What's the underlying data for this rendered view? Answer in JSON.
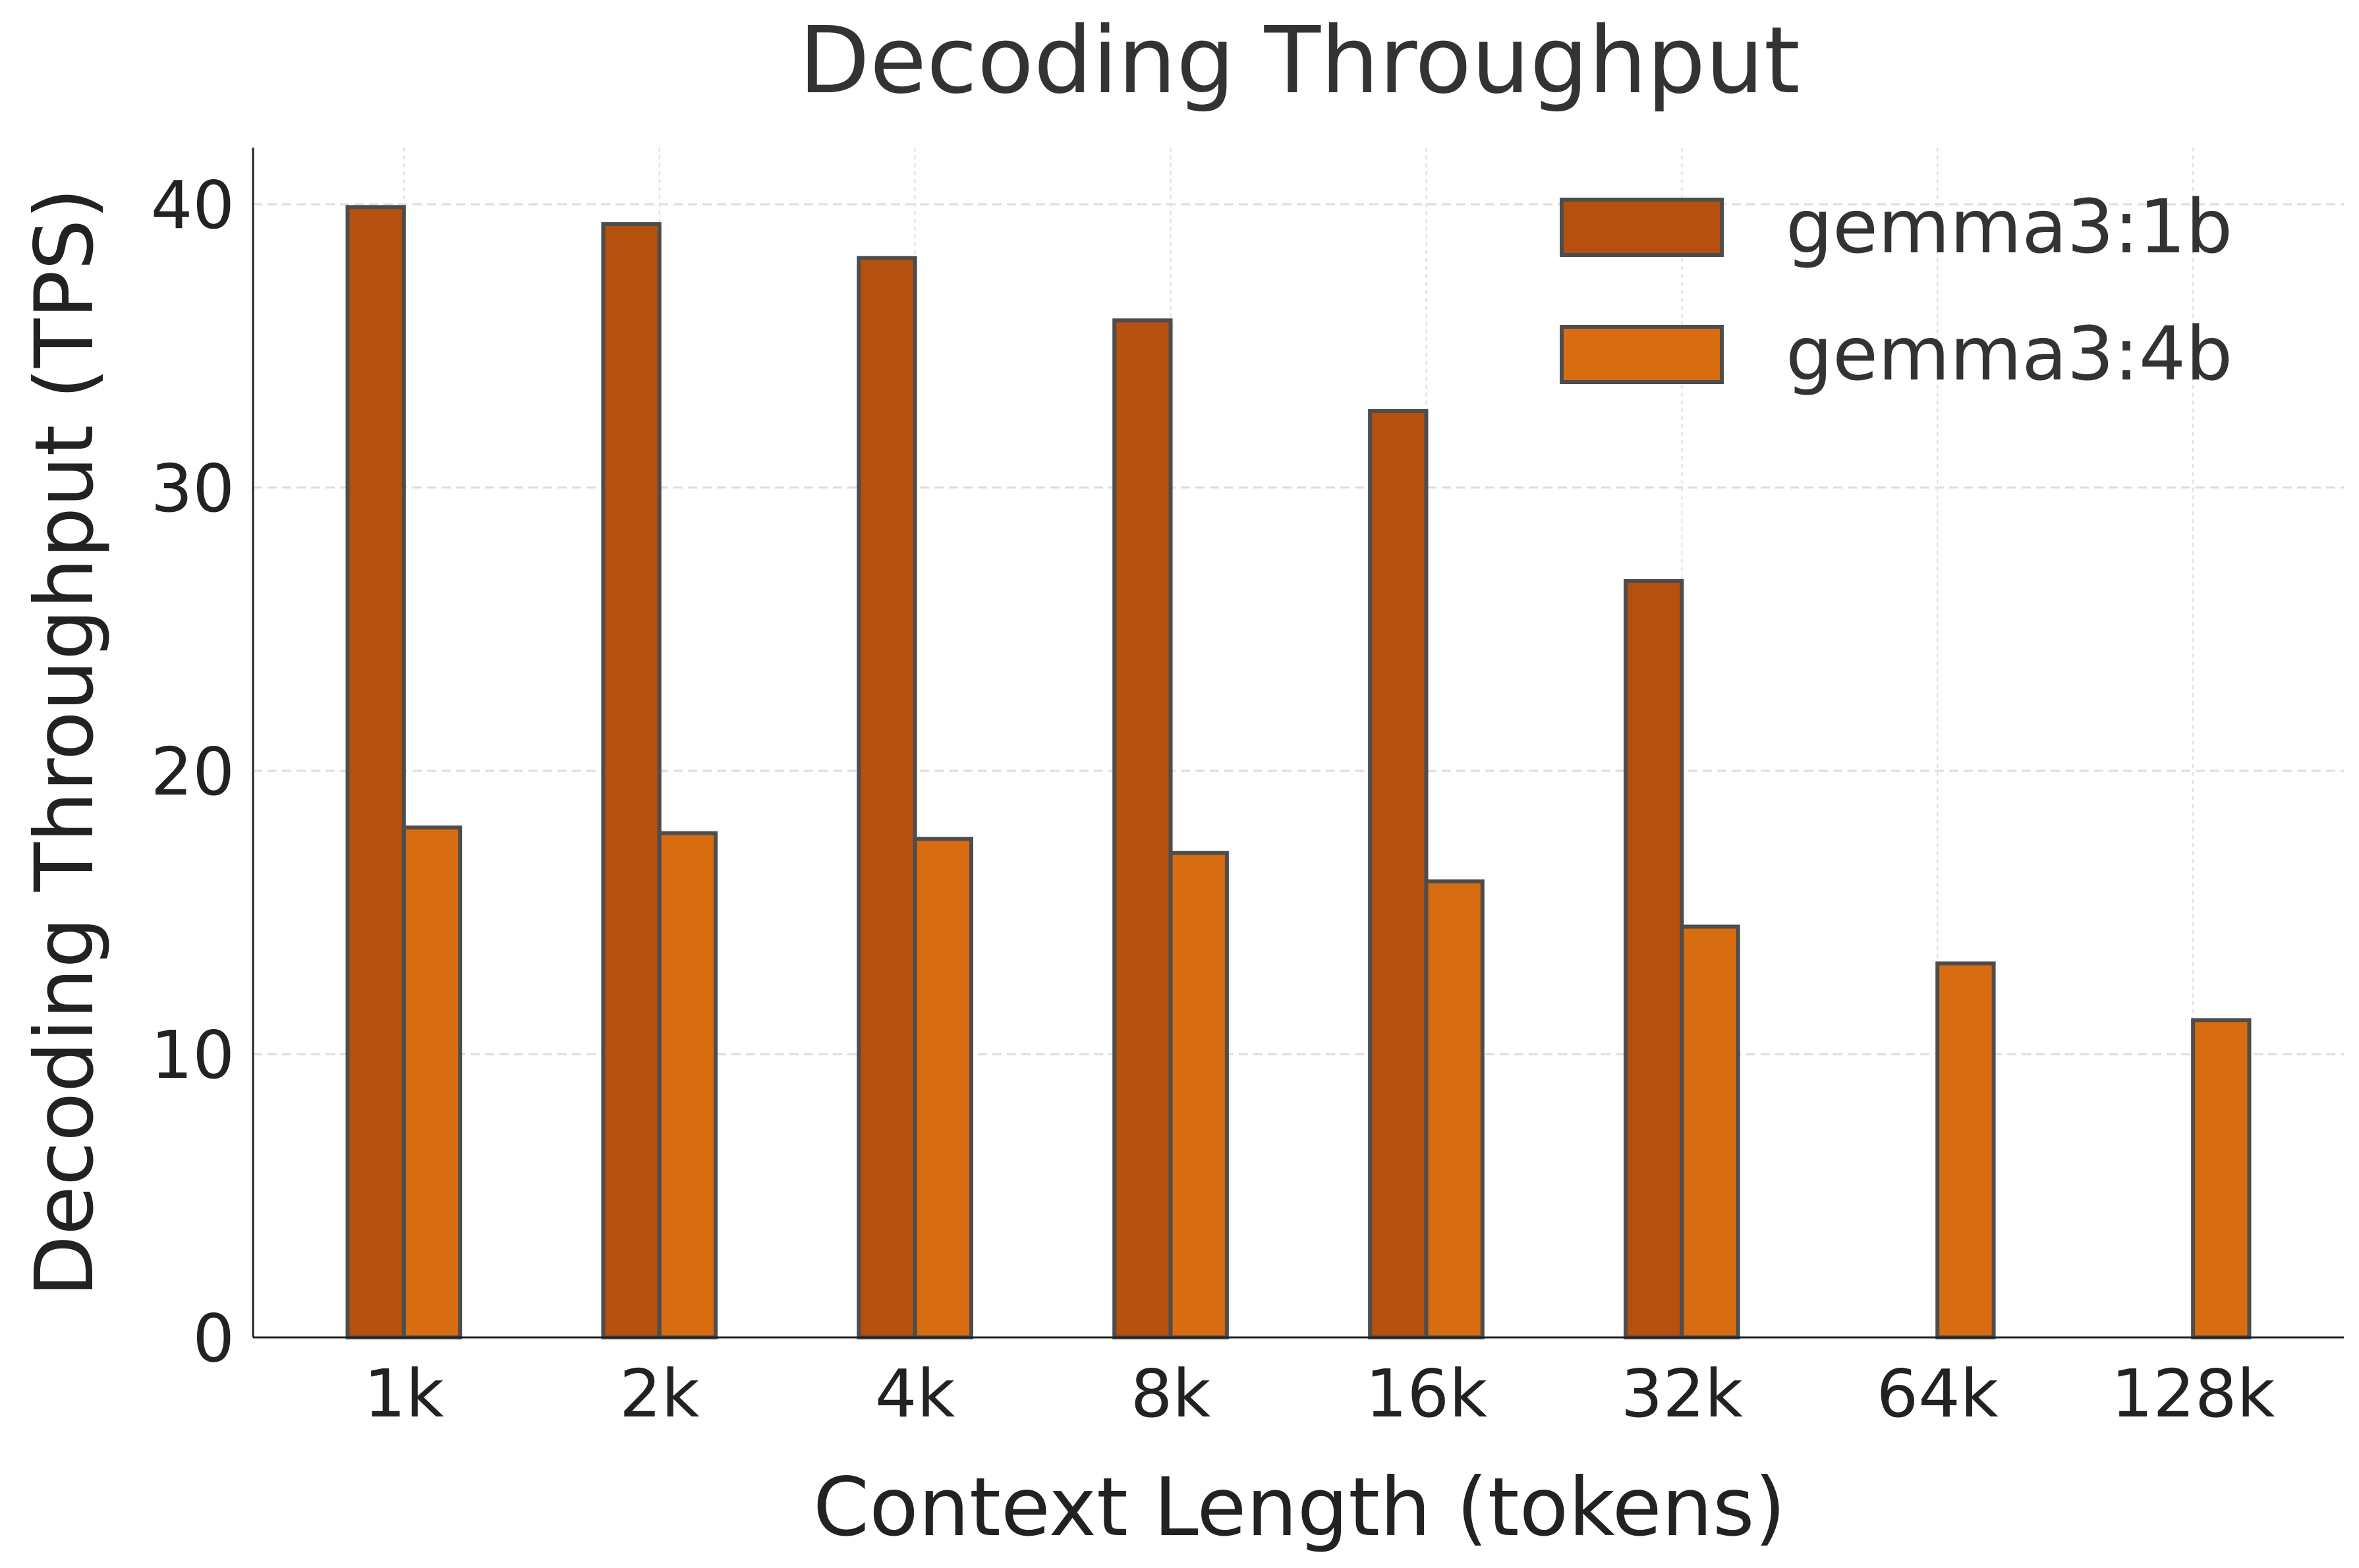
{
  "chart_data": {
    "type": "bar",
    "title": "Decoding Throughput",
    "xlabel": "Context Length (tokens)",
    "ylabel": "Decoding Throughput (TPS)",
    "categories": [
      "1k",
      "2k",
      "4k",
      "8k",
      "16k",
      "32k",
      "64k",
      "128k"
    ],
    "series": [
      {
        "name": "gemma3:1b",
        "color": "#b5500f",
        "values": [
          39.9,
          39.3,
          38.1,
          35.9,
          32.7,
          26.7,
          null,
          null
        ]
      },
      {
        "name": "gemma3:4b",
        "color": "#d86c10",
        "values": [
          18.0,
          17.8,
          17.6,
          17.1,
          16.1,
          14.5,
          13.2,
          11.2
        ]
      }
    ],
    "ylim": [
      0,
      42
    ],
    "yticks": [
      0,
      10,
      20,
      30,
      40
    ],
    "grid": true,
    "legend_position": "top-right"
  }
}
